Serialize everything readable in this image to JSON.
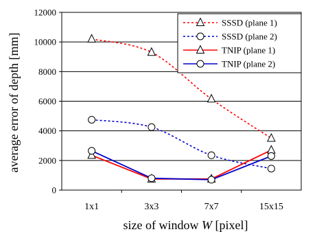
{
  "chart_data": {
    "type": "line",
    "title": "",
    "xlabel": "size of window",
    "xlabel_var": "W",
    "xlabel_unit": "[pixel]",
    "ylabel": "average error of depth [mm]",
    "ylim": [
      0,
      12000
    ],
    "yticks": [
      0,
      2000,
      4000,
      6000,
      8000,
      10000,
      12000
    ],
    "categories": [
      "1x1",
      "3x3",
      "7x7",
      "15x15"
    ],
    "grid": "horizontal",
    "legend_position": "top-right",
    "series": [
      {
        "name": "SSSD (plane 1)",
        "values": [
          10200,
          9300,
          6150,
          3500
        ],
        "color": "#ff0000",
        "dash": true,
        "marker": "triangle"
      },
      {
        "name": "SSSD (plane 2)",
        "values": [
          4750,
          4250,
          2350,
          1450
        ],
        "color": "#0000cc",
        "dash": true,
        "marker": "circle"
      },
      {
        "name": "TNIP (plane 1)",
        "values": [
          2350,
          750,
          750,
          2700
        ],
        "color": "#ff0000",
        "dash": false,
        "marker": "triangle"
      },
      {
        "name": "TNIP (plane 2)",
        "values": [
          2650,
          800,
          700,
          2300
        ],
        "color": "#0000cc",
        "dash": false,
        "marker": "circle"
      }
    ]
  }
}
